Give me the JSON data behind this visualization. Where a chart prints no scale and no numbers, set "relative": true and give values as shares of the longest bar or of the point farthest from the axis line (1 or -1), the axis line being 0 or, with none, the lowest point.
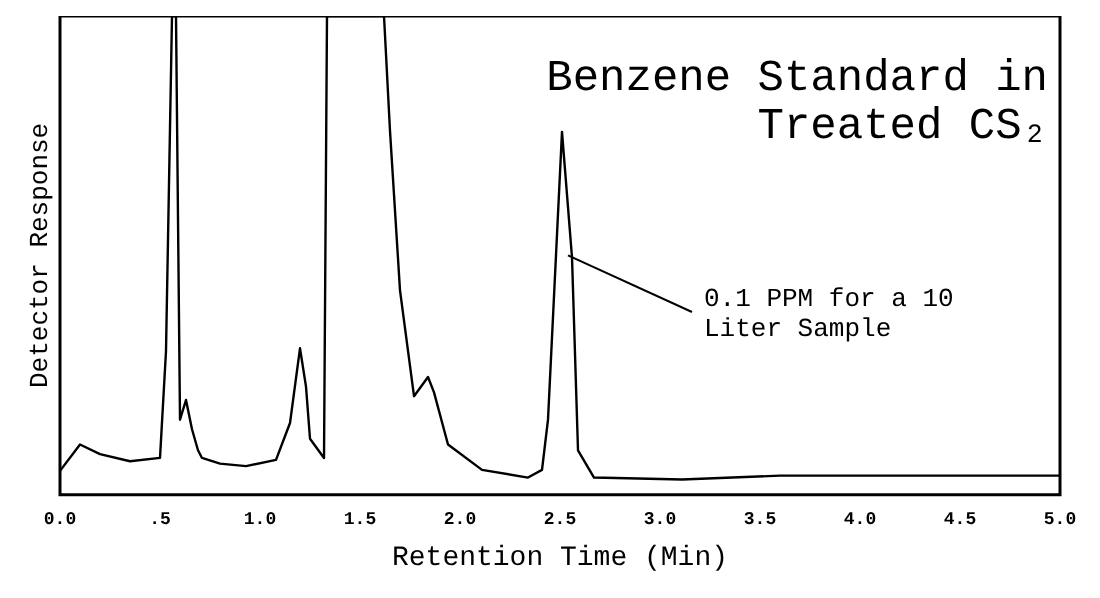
{
  "chart_data": {
    "type": "line",
    "title": "Benzene Standard in Treated CS₂",
    "xlabel": "Retention Time (Min)",
    "ylabel": "Detector Response",
    "relative": true,
    "color": "#000000",
    "marker": "none",
    "grid": false,
    "legend": false,
    "tick_labels": "x",
    "x": [
      0,
      0.1,
      0.2,
      0.35,
      0.5,
      0.53,
      0.56,
      0.58,
      0.6,
      0.63,
      0.66,
      0.69,
      0.71,
      0.8,
      0.93,
      1.08,
      1.15,
      1.2,
      1.23,
      1.25,
      1.32,
      1.335,
      1.62,
      1.65,
      1.7,
      1.77,
      1.84,
      1.87,
      1.94,
      2.11,
      2.34,
      2.41,
      2.44,
      2.51,
      2.56,
      2.59,
      2.67,
      3.11,
      3.6,
      4.2,
      4.95,
      5.0
    ],
    "values": [
      0.05,
      0.105,
      0.085,
      0.07,
      0.077,
      0.3,
      1,
      1,
      0.157,
      0.198,
      0.137,
      0.093,
      0.077,
      0.065,
      0.06,
      0.073,
      0.15,
      0.306,
      0.226,
      0.117,
      0.077,
      1,
      1,
      0.76,
      0.427,
      0.206,
      0.246,
      0.214,
      0.105,
      0.052,
      0.036,
      0.052,
      0.157,
      0.758,
      0.496,
      0.093,
      0.036,
      0.032,
      0.04,
      0.04,
      0.04,
      0.04
    ],
    "xlim": [
      0,
      5
    ],
    "xticks": [
      {
        "value": 0,
        "label": "0.0"
      },
      {
        "value": 0.5,
        "label": ".5"
      },
      {
        "value": 1,
        "label": "1.0"
      },
      {
        "value": 1.5,
        "label": "1.5"
      },
      {
        "value": 2,
        "label": "2.0"
      },
      {
        "value": 2.5,
        "label": "2.5"
      },
      {
        "value": 3,
        "label": "3.0"
      },
      {
        "value": 3.5,
        "label": "3.5"
      },
      {
        "value": 4,
        "label": "4.0"
      },
      {
        "value": 4.5,
        "label": "4.5"
      },
      {
        "value": 5,
        "label": "5.0"
      }
    ],
    "annotations": [
      {
        "text": "0.1 PPM for a 10 Liter Sample",
        "x": 2.54,
        "y": 0.5
      }
    ]
  }
}
